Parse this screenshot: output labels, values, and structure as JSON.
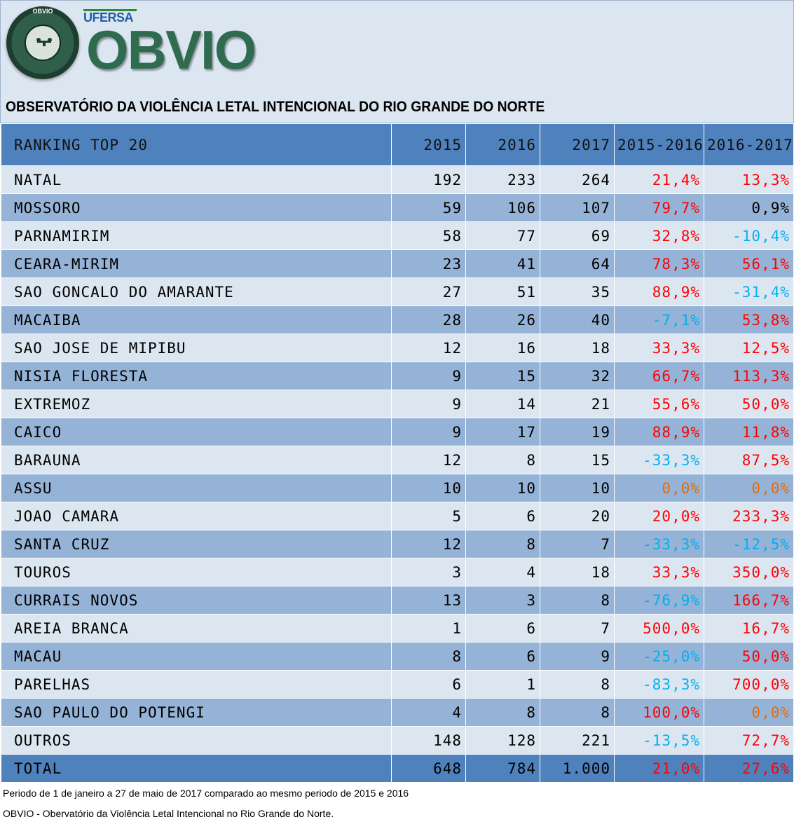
{
  "header": {
    "seal_text": "OBVIO",
    "seal_ring_text": "OBSERVATÓRIO DA VIOLÊNCIA LETAL INTENCIONAL",
    "university": "UFERSA",
    "brand": "OBVIO",
    "title": "OBSERVATÓRIO DA VIOLÊNCIA LETAL INTENCIONAL DO RIO GRANDE DO NORTE"
  },
  "table": {
    "columns": [
      "RANKING TOP 20",
      "2015",
      "2016",
      "2017",
      "2015-2016",
      "2016-2017"
    ],
    "rows": [
      {
        "name": "NATAL",
        "y2015": "192",
        "y2016": "233",
        "y2017": "264",
        "v1": "21,4%",
        "c1": "red",
        "v2": "13,3%",
        "c2": "red"
      },
      {
        "name": "MOSSORO",
        "y2015": "59",
        "y2016": "106",
        "y2017": "107",
        "v1": "79,7%",
        "c1": "red",
        "v2": "0,9%",
        "c2": "black"
      },
      {
        "name": "PARNAMIRIM",
        "y2015": "58",
        "y2016": "77",
        "y2017": "69",
        "v1": "32,8%",
        "c1": "red",
        "v2": "-10,4%",
        "c2": "cyan"
      },
      {
        "name": "CEARA-MIRIM",
        "y2015": "23",
        "y2016": "41",
        "y2017": "64",
        "v1": "78,3%",
        "c1": "red",
        "v2": "56,1%",
        "c2": "red"
      },
      {
        "name": "SAO GONCALO DO AMARANTE",
        "y2015": "27",
        "y2016": "51",
        "y2017": "35",
        "v1": "88,9%",
        "c1": "red",
        "v2": "-31,4%",
        "c2": "cyan"
      },
      {
        "name": "MACAIBA",
        "y2015": "28",
        "y2016": "26",
        "y2017": "40",
        "v1": "-7,1%",
        "c1": "cyan",
        "v2": "53,8%",
        "c2": "red"
      },
      {
        "name": "SAO JOSE DE MIPIBU",
        "y2015": "12",
        "y2016": "16",
        "y2017": "18",
        "v1": "33,3%",
        "c1": "red",
        "v2": "12,5%",
        "c2": "red"
      },
      {
        "name": "NISIA FLORESTA",
        "y2015": "9",
        "y2016": "15",
        "y2017": "32",
        "v1": "66,7%",
        "c1": "red",
        "v2": "113,3%",
        "c2": "red"
      },
      {
        "name": "EXTREMOZ",
        "y2015": "9",
        "y2016": "14",
        "y2017": "21",
        "v1": "55,6%",
        "c1": "red",
        "v2": "50,0%",
        "c2": "red"
      },
      {
        "name": "CAICO",
        "y2015": "9",
        "y2016": "17",
        "y2017": "19",
        "v1": "88,9%",
        "c1": "red",
        "v2": "11,8%",
        "c2": "red"
      },
      {
        "name": "BARAUNA",
        "y2015": "12",
        "y2016": "8",
        "y2017": "15",
        "v1": "-33,3%",
        "c1": "cyan",
        "v2": "87,5%",
        "c2": "red"
      },
      {
        "name": "ASSU",
        "y2015": "10",
        "y2016": "10",
        "y2017": "10",
        "v1": "0,0%",
        "c1": "orange",
        "v2": "0,0%",
        "c2": "orange"
      },
      {
        "name": "JOAO CAMARA",
        "y2015": "5",
        "y2016": "6",
        "y2017": "20",
        "v1": "20,0%",
        "c1": "red",
        "v2": "233,3%",
        "c2": "red"
      },
      {
        "name": "SANTA CRUZ",
        "y2015": "12",
        "y2016": "8",
        "y2017": "7",
        "v1": "-33,3%",
        "c1": "cyan",
        "v2": "-12,5%",
        "c2": "cyan"
      },
      {
        "name": "TOUROS",
        "y2015": "3",
        "y2016": "4",
        "y2017": "18",
        "v1": "33,3%",
        "c1": "red",
        "v2": "350,0%",
        "c2": "red"
      },
      {
        "name": "CURRAIS NOVOS",
        "y2015": "13",
        "y2016": "3",
        "y2017": "8",
        "v1": "-76,9%",
        "c1": "cyan",
        "v2": "166,7%",
        "c2": "red"
      },
      {
        "name": "AREIA BRANCA",
        "y2015": "1",
        "y2016": "6",
        "y2017": "7",
        "v1": "500,0%",
        "c1": "red",
        "v2": "16,7%",
        "c2": "red"
      },
      {
        "name": "MACAU",
        "y2015": "8",
        "y2016": "6",
        "y2017": "9",
        "v1": "-25,0%",
        "c1": "cyan",
        "v2": "50,0%",
        "c2": "red"
      },
      {
        "name": "PARELHAS",
        "y2015": "6",
        "y2016": "1",
        "y2017": "8",
        "v1": "-83,3%",
        "c1": "cyan",
        "v2": "700,0%",
        "c2": "red"
      },
      {
        "name": "SAO PAULO DO POTENGI",
        "y2015": "4",
        "y2016": "8",
        "y2017": "8",
        "v1": "100,0%",
        "c1": "red",
        "v2": "0,0%",
        "c2": "orange"
      },
      {
        "name": "OUTROS",
        "y2015": "148",
        "y2016": "128",
        "y2017": "221",
        "v1": "-13,5%",
        "c1": "cyan",
        "v2": "72,7%",
        "c2": "red"
      }
    ],
    "total": {
      "name": "TOTAL",
      "y2015": "648",
      "y2016": "784",
      "y2017": "1.000",
      "v1": "21,0%",
      "c1": "red",
      "v2": "27,6%",
      "c2": "red"
    }
  },
  "footer": {
    "line1": "Periodo de 1 de janeiro a 27 de maio de 2017 comparado ao mesmo periodo de 2015 e 2016",
    "line2": "OBVIO - Obervatório da Violência Letal Intencional no Rio Grande do Norte."
  },
  "colors": {
    "header_bg": "#dce6f1",
    "table_header": "#4f81bd",
    "row_light": "#dce6f1",
    "row_dark": "#95b3d7",
    "increase": "#ff0000",
    "decrease": "#00b0f0",
    "no_change": "#e36c09",
    "brand_green": "#2e6b4f"
  }
}
